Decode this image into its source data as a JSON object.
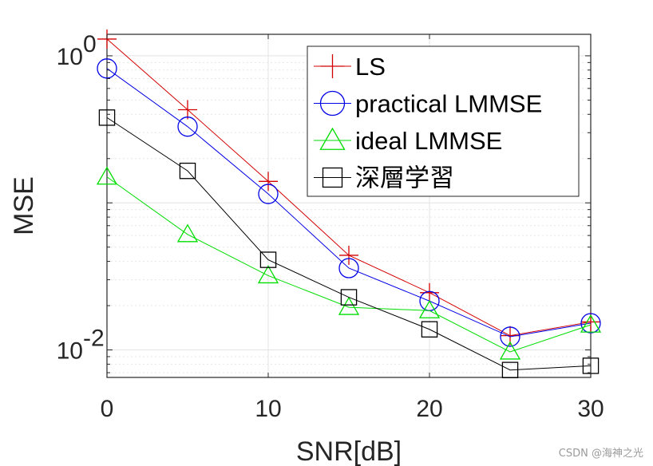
{
  "chart_data": {
    "type": "line",
    "xlabel": "SNR[dB]",
    "ylabel": "MSE",
    "x": [
      0,
      5,
      10,
      15,
      20,
      25,
      30
    ],
    "xlim": [
      0,
      30
    ],
    "ylim": [
      0.0065,
      1.4
    ],
    "yscale": "log",
    "xticks": [
      0,
      10,
      20,
      30
    ],
    "yticks": [
      {
        "value": 0.01,
        "base": "10",
        "exp": "-2"
      },
      {
        "value": 1,
        "base": "10",
        "exp": "0"
      }
    ],
    "grid": true,
    "legend_position": "top-right",
    "series": [
      {
        "name": "LS",
        "marker": "plus",
        "color": "#d40000",
        "values": [
          1.3,
          0.43,
          0.14,
          0.044,
          0.0245,
          0.0125,
          0.0155
        ]
      },
      {
        "name": "practical LMMSE",
        "marker": "circle",
        "color": "#0000e6",
        "values": [
          0.82,
          0.33,
          0.115,
          0.036,
          0.0215,
          0.0123,
          0.0152
        ]
      },
      {
        "name": "ideal LMMSE",
        "marker": "triangle",
        "color": "#00dd00",
        "values": [
          0.15,
          0.061,
          0.032,
          0.0195,
          0.0185,
          0.0097,
          0.0148
        ]
      },
      {
        "name": "深層学習",
        "marker": "square",
        "color": "#000000",
        "values": [
          0.38,
          0.165,
          0.041,
          0.0228,
          0.0138,
          0.0073,
          0.0078
        ]
      }
    ]
  },
  "watermark": "CSDN @海神之光"
}
